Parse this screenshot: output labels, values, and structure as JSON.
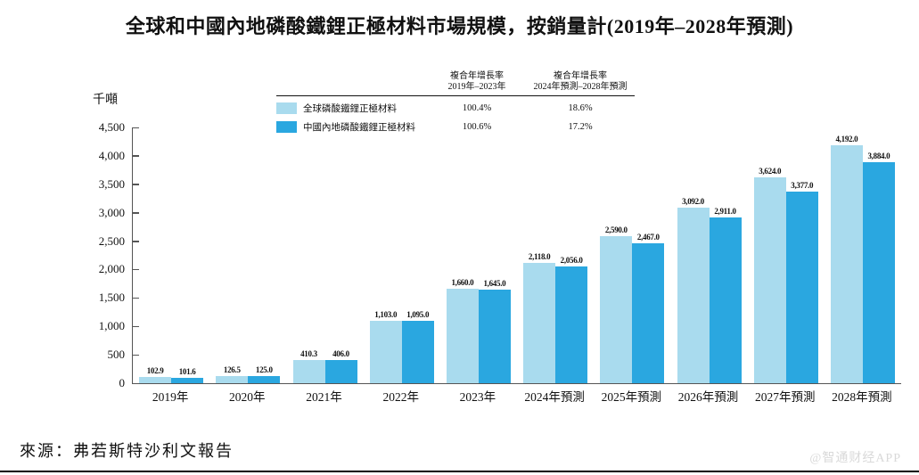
{
  "title": "全球和中國內地磷酸鐵鋰正極材料市場規模，按銷量計(2019年–2028年預測)",
  "unit_label": "千噸",
  "source": "來源：弗若斯特沙利文報告",
  "watermark": "@智通财经APP",
  "colors": {
    "global_series": "#a9dbee",
    "china_series": "#2aa7e0",
    "axis": "#555555"
  },
  "cagr_table": {
    "col1_header_line1": "複合年增長率",
    "col1_header_line2": "2019年–2023年",
    "col2_header_line1": "複合年增長率",
    "col2_header_line2": "2024年預測–2028年預測",
    "rows": [
      {
        "label": "全球磷酸鐵鋰正極材料",
        "cagr_2019_2023": "100.4%",
        "cagr_2024_2028": "18.6%"
      },
      {
        "label": "中國內地磷酸鐵鋰正極材料",
        "cagr_2019_2023": "100.6%",
        "cagr_2024_2028": "17.2%"
      }
    ]
  },
  "chart_data": {
    "type": "bar",
    "categories": [
      "2019年",
      "2020年",
      "2021年",
      "2022年",
      "2023年",
      "2024年預測",
      "2025年預測",
      "2026年預測",
      "2027年預測",
      "2028年預測"
    ],
    "series": [
      {
        "name": "全球磷酸鐵鋰正極材料",
        "values": [
          102.9,
          126.5,
          410.3,
          1103.0,
          1660.0,
          2118.0,
          2590.0,
          3092.0,
          3624.0,
          4192.0
        ]
      },
      {
        "name": "中國內地磷酸鐵鋰正極材料",
        "values": [
          101.6,
          125.0,
          406.0,
          1095.0,
          1645.0,
          2056.0,
          2467.0,
          2911.0,
          3377.0,
          3884.0
        ]
      }
    ],
    "ylabel": "千噸",
    "ylim": [
      0,
      4500
    ],
    "ytick_step": 500,
    "grid": false,
    "legend_position": "top-left-table",
    "value_label_format": "thousands-comma-one-decimal"
  }
}
